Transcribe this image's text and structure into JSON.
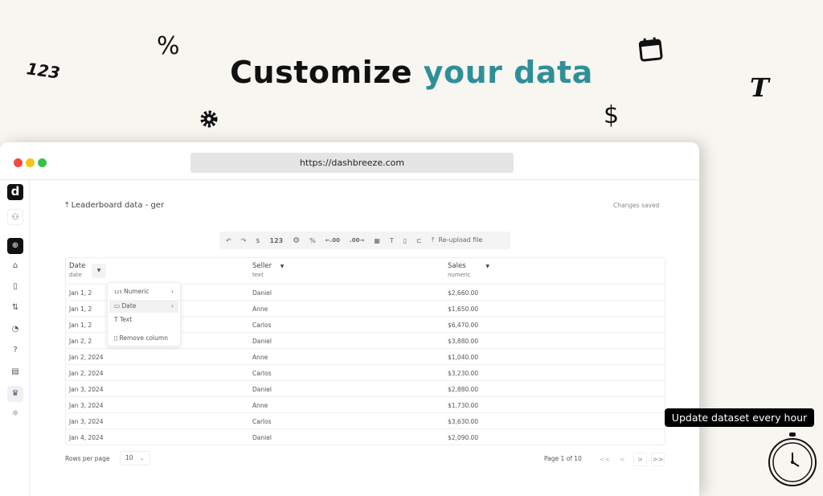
{
  "hero": {
    "title_part1": "Customize",
    "title_part2": "your data",
    "accent_color": "#2f8f98"
  },
  "decorations": {
    "numbers": "123",
    "percent": "%",
    "dollar": "$",
    "text": "T",
    "gear": "gear-icon",
    "calendar": "calendar-icon",
    "stopwatch": "stopwatch-icon"
  },
  "browser": {
    "url": "https://dashbreeze.com"
  },
  "sidebar": {
    "logo": "d",
    "items": [
      "user",
      "dashboard-add",
      "home",
      "file",
      "transform",
      "palette",
      "help",
      "document",
      "crown",
      "settings"
    ]
  },
  "page": {
    "title": "Leaderboard data - ger",
    "status": "Changes saved"
  },
  "toolbar": {
    "currency": "$",
    "numeric": "123",
    "percent": "%",
    "decrease_decimals": "←.00",
    "increase_decimals": ".00→",
    "reupload": "Re-upload file"
  },
  "table": {
    "columns": [
      {
        "name": "Date",
        "type": "date"
      },
      {
        "name": "Seller",
        "type": "text"
      },
      {
        "name": "Sales",
        "type": "numeric"
      }
    ],
    "rows": [
      [
        "Jan 1, 2",
        "Daniel",
        "$2,660.00"
      ],
      [
        "Jan 1, 2",
        "Anne",
        "$1,650.00"
      ],
      [
        "Jan 1, 2",
        "Carlos",
        "$6,470.00"
      ],
      [
        "Jan 2, 2",
        "Daniel",
        "$3,880.00"
      ],
      [
        "Jan 2, 2024",
        "Anne",
        "$1,040.00"
      ],
      [
        "Jan 2, 2024",
        "Carlos",
        "$3,230.00"
      ],
      [
        "Jan 3, 2024",
        "Daniel",
        "$2,880.00"
      ],
      [
        "Jan 3, 2024",
        "Anne",
        "$1,730.00"
      ],
      [
        "Jan 3, 2024",
        "Carlos",
        "$3,630.00"
      ],
      [
        "Jan 4, 2024",
        "Daniel",
        "$2,090.00"
      ]
    ]
  },
  "column_menu": {
    "items": [
      "Numeric",
      "Date",
      "Text",
      "Remove column"
    ],
    "highlighted": "Date"
  },
  "pagination": {
    "rows_per_page_label": "Rows per page",
    "rows_per_page": "10",
    "page_info": "Page 1 of 10",
    "first": "<<",
    "prev": "<",
    "next": ">",
    "last": ">>"
  },
  "tooltip": {
    "text": "Update dataset every hour"
  }
}
